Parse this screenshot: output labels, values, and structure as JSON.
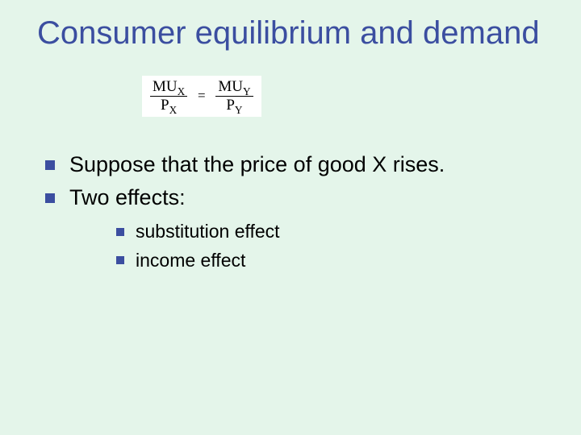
{
  "slide": {
    "background_color": "#e4f5ea",
    "title_color": "#3b4ea0",
    "bullet_color": "#3b4ea0",
    "text_color": "#000000",
    "title_fontsize": 40,
    "body_fontsize": 27,
    "sub_fontsize": 23,
    "title": "Consumer equilibrium and demand",
    "formula": {
      "left_numerator": "MU",
      "left_num_sub": "X",
      "left_denominator": "P",
      "left_den_sub": "X",
      "equals": "=",
      "right_numerator": "MU",
      "right_num_sub": "Y",
      "right_denominator": "P",
      "right_den_sub": "Y",
      "box_background": "#ffffff",
      "font_family": "Times New Roman"
    },
    "bullets_level1": [
      "Suppose that the price of good X rises.",
      "Two effects:"
    ],
    "bullets_level2": [
      "substitution effect",
      "income effect"
    ]
  }
}
